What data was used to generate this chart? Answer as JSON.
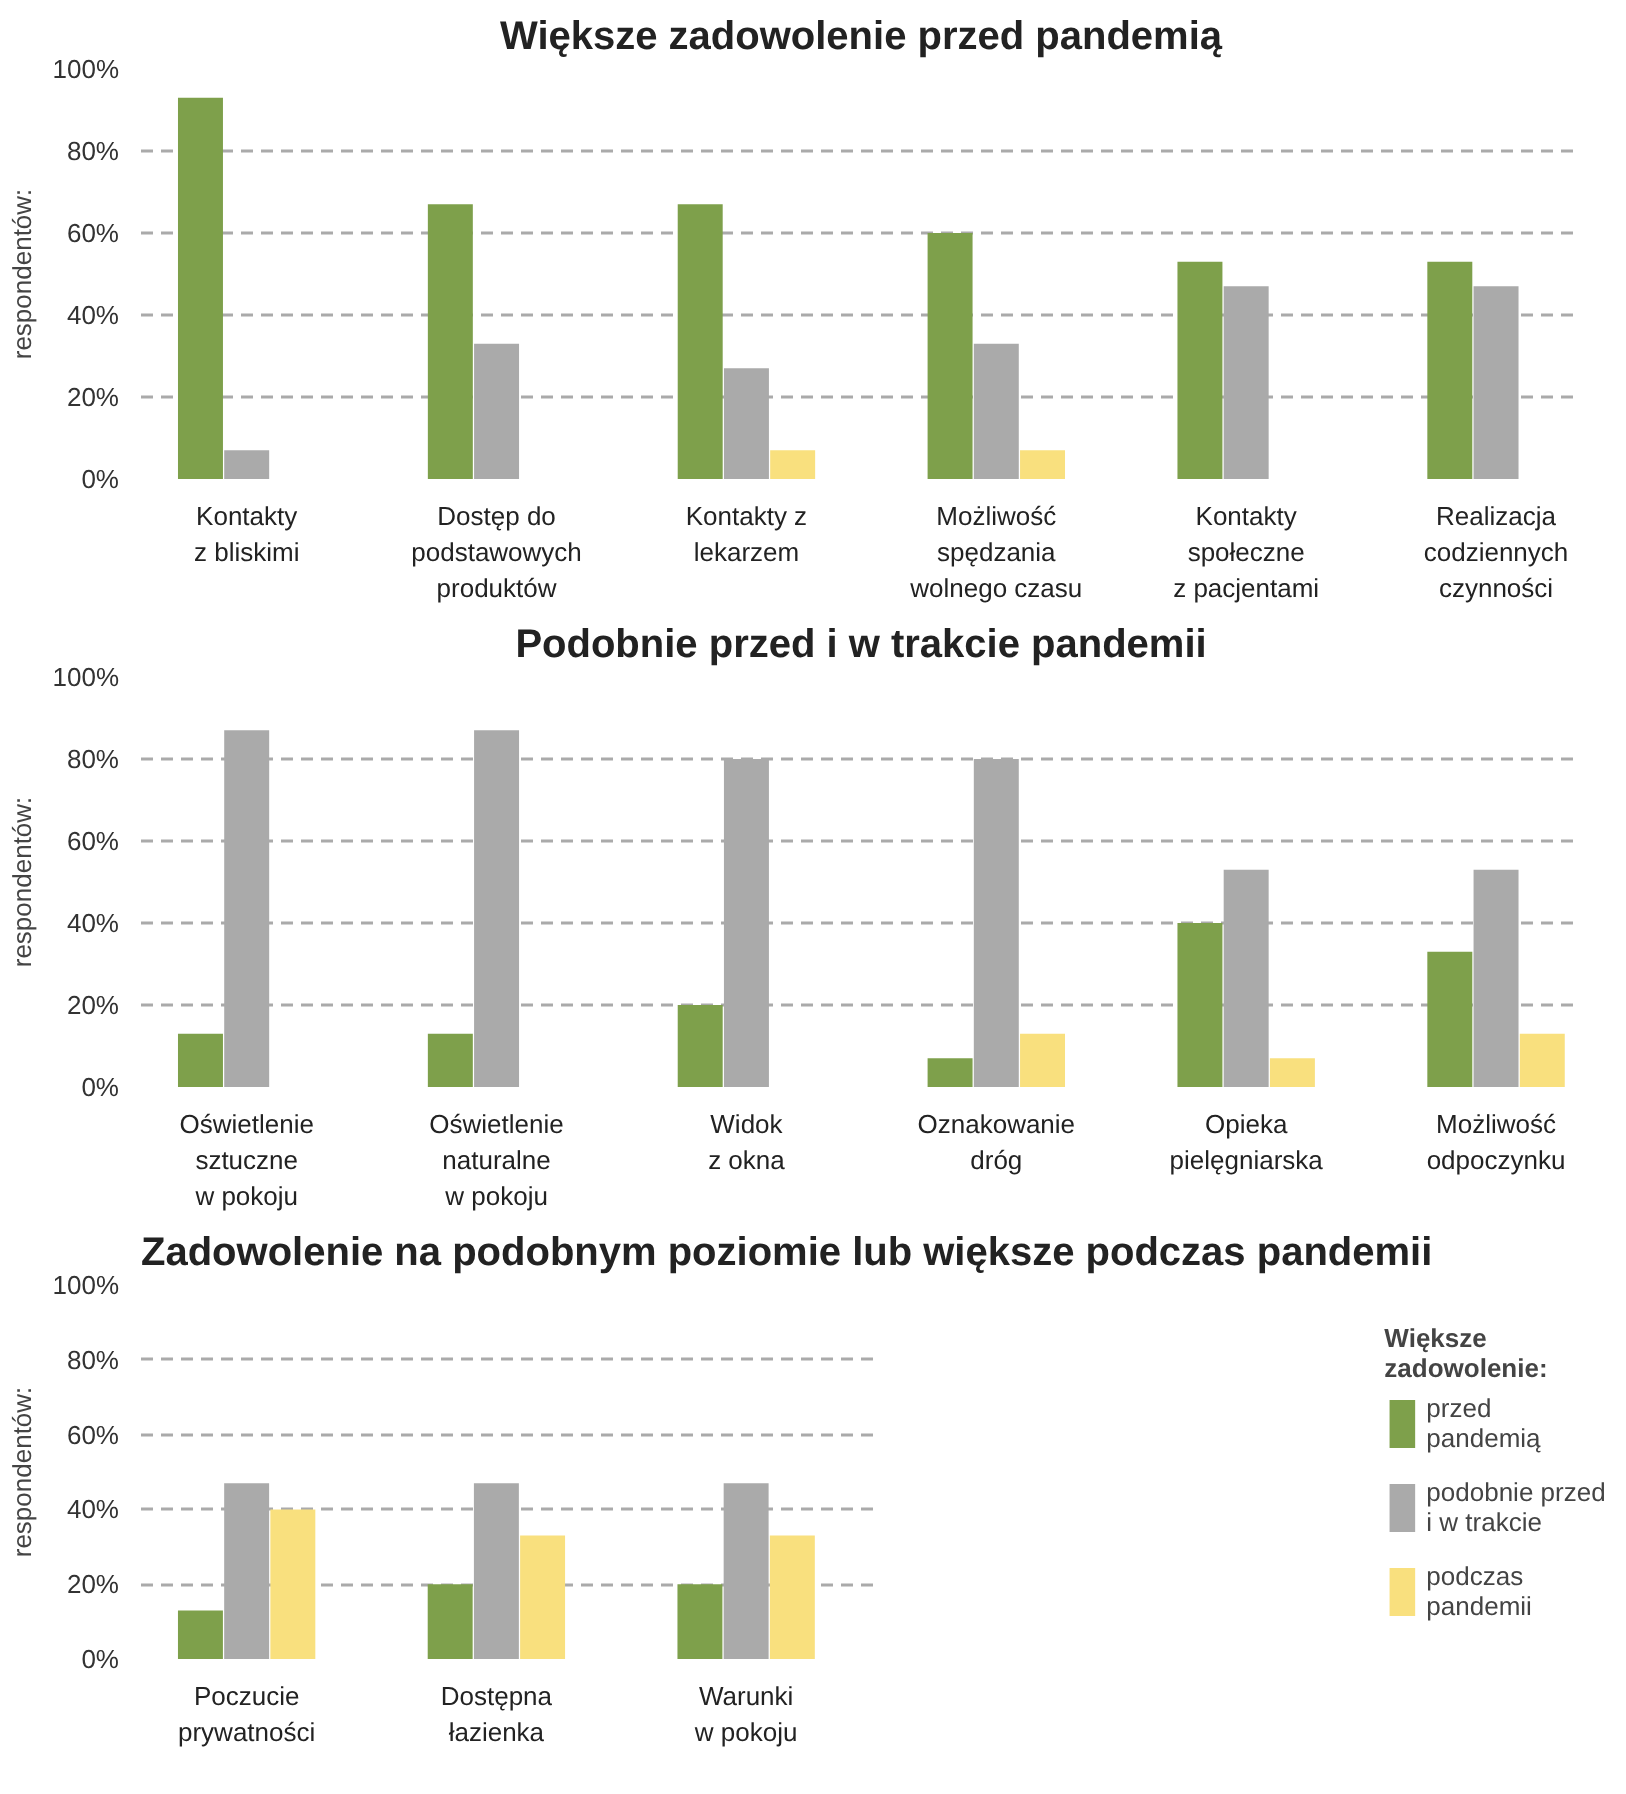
{
  "chart_data": [
    {
      "type": "bar",
      "title": "Większe zadowolenie przed pandemią",
      "ylabel": "respondentów:",
      "categories": [
        "Kontakty\nz bliskimi",
        "Dostęp do\npodstawowych\nproduktów",
        "Kontakty z\nlekarzem",
        "Możliwość\nspędzania\nwolnego czasu",
        "Kontakty\nspołeczne\nz pacjentami",
        "Realizacja\ncodziennych\nczynności"
      ],
      "series": [
        {
          "color": "#7ea04b",
          "values": [
            93,
            67,
            67,
            60,
            53,
            53
          ]
        },
        {
          "color": "#aaaaaa",
          "values": [
            7,
            33,
            27,
            33,
            47,
            47
          ]
        },
        {
          "color": "#f9e07e",
          "values": [
            0,
            0,
            7,
            7,
            0,
            0
          ]
        }
      ],
      "ylim": [
        0,
        100
      ],
      "yticks": [
        {
          "value": 0,
          "label": "0%"
        },
        {
          "value": 20,
          "label": "20%"
        },
        {
          "value": 40,
          "label": "40%"
        },
        {
          "value": 60,
          "label": "60%"
        },
        {
          "value": 80,
          "label": "80%"
        },
        {
          "value": 100,
          "label": "100%"
        }
      ],
      "grid": "y"
    },
    {
      "type": "bar",
      "title": "Podobnie przed i w trakcie pandemii",
      "ylabel": "respondentów:",
      "categories": [
        "Oświetlenie\nsztuczne\nw pokoju",
        "Oświetlenie\nnaturalne\nw pokoju",
        "Widok\nz okna",
        "Oznakowanie\ndróg",
        "Opieka\npielęgniarska",
        "Możliwość\nodpoczynku"
      ],
      "series": [
        {
          "color": "#7ea04b",
          "values": [
            13,
            13,
            20,
            7,
            40,
            33
          ]
        },
        {
          "color": "#aaaaaa",
          "values": [
            87,
            87,
            80,
            80,
            53,
            53
          ]
        },
        {
          "color": "#f9e07e",
          "values": [
            0,
            0,
            0,
            13,
            7,
            13
          ]
        }
      ],
      "ylim": [
        0,
        100
      ],
      "yticks": [
        {
          "value": 0,
          "label": "0%"
        },
        {
          "value": 20,
          "label": "20%"
        },
        {
          "value": 40,
          "label": "40%"
        },
        {
          "value": 60,
          "label": "60%"
        },
        {
          "value": 80,
          "label": "80%"
        },
        {
          "value": 100,
          "label": "100%"
        }
      ],
      "grid": "y"
    },
    {
      "type": "bar",
      "title": "Zadowolenie na podobnym poziomie lub większe podczas pandemii",
      "ylabel": "respondentów:",
      "legend_title": "Większe\nzadowolenie:",
      "categories": [
        "Poczucie\nprywatności",
        "Dostępna\nłazienka",
        "Warunki\nw pokoju"
      ],
      "series": [
        {
          "name": "przed\npandemią",
          "color": "#7ea04b",
          "values": [
            13,
            20,
            20
          ]
        },
        {
          "name": "podobnie przed\ni w trakcie",
          "color": "#aaaaaa",
          "values": [
            47,
            47,
            47
          ]
        },
        {
          "name": "podczas\npandemii",
          "color": "#f9e07e",
          "values": [
            40,
            33,
            33
          ]
        }
      ],
      "ylim": [
        0,
        100
      ],
      "yticks": [
        {
          "value": 0,
          "label": "0%"
        },
        {
          "value": 20,
          "label": "20%"
        },
        {
          "value": 40,
          "label": "40%"
        },
        {
          "value": 60,
          "label": "60%"
        },
        {
          "value": 80,
          "label": "80%"
        },
        {
          "value": 100,
          "label": "100%"
        }
      ],
      "grid": "y",
      "legend": "right"
    }
  ]
}
